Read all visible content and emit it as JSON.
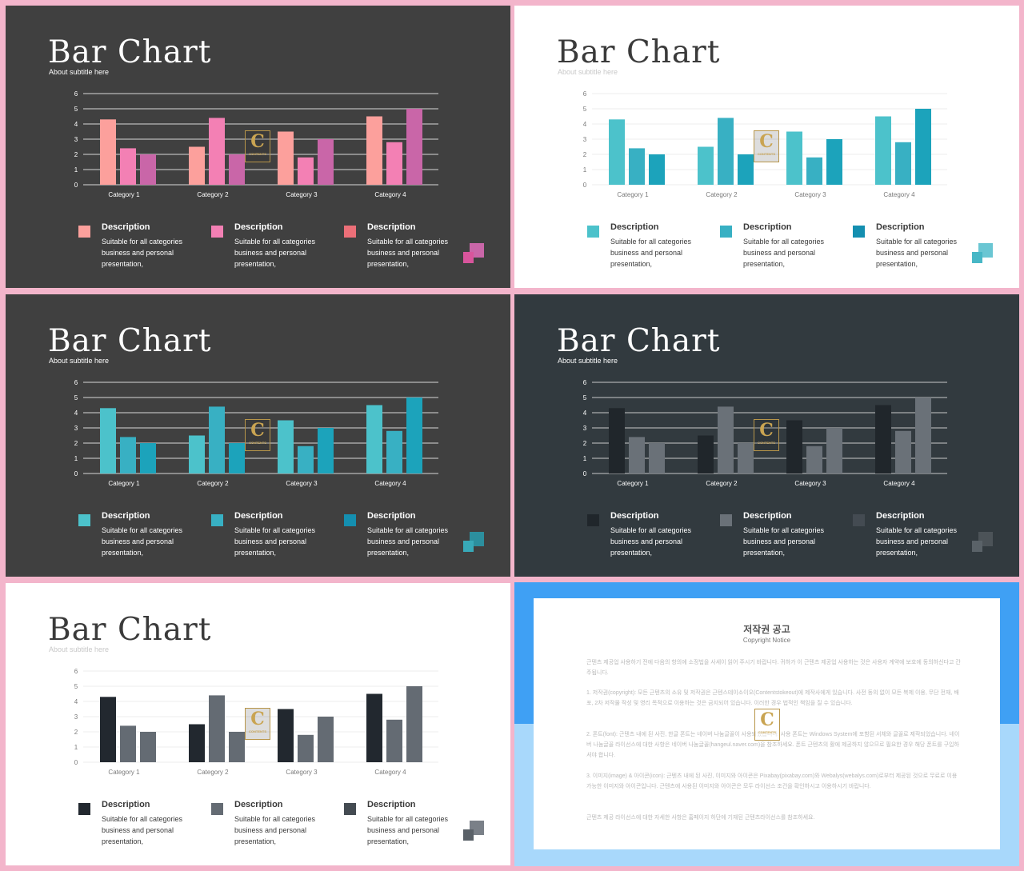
{
  "slides": [
    {
      "title": "Bar Chart",
      "subtitle": "About subtitle here",
      "bg": "#404040",
      "title_color": "#ffffff",
      "sub_color": "#ffffff",
      "axis_color": "#ffffff",
      "line_color": "#d8d8d8",
      "colors": [
        "#fca09c",
        "#f380b4",
        "#c966a8"
      ],
      "legend_colors": [
        "#fca09c",
        "#f380b4",
        "#ec6f78"
      ],
      "deco_colors": [
        "#c966a8",
        "#d8559c"
      ]
    },
    {
      "title": "Bar Chart",
      "subtitle": "About subtitle here",
      "bg": "#ffffff",
      "title_color": "#3a3a3a",
      "sub_color": "#c8c8c8",
      "axis_color": "#7a7a7a",
      "line_color": "#ececec",
      "colors": [
        "#4cc2cb",
        "#38b0c3",
        "#1ca3bb"
      ],
      "legend_colors": [
        "#4cc2cb",
        "#38b0c3",
        "#148fb0"
      ],
      "deco_colors": [
        "#6ac6d3",
        "#48b7c6"
      ]
    },
    {
      "title": "Bar Chart",
      "subtitle": "About subtitle here",
      "bg": "#404040",
      "title_color": "#ffffff",
      "sub_color": "#ffffff",
      "axis_color": "#ffffff",
      "line_color": "#d8d8d8",
      "colors": [
        "#4cc2cb",
        "#38b0c3",
        "#1ca3bb"
      ],
      "legend_colors": [
        "#4cc2cb",
        "#38b0c3",
        "#148fb0"
      ],
      "deco_colors": [
        "#2c8f9e",
        "#38a9b8"
      ]
    },
    {
      "title": "Bar Chart",
      "subtitle": "About subtitle here",
      "bg": "#323a3f",
      "title_color": "#ffffff",
      "sub_color": "#ffffff",
      "axis_color": "#ffffff",
      "line_color": "#c8c8c8",
      "colors": [
        "#20262b",
        "#6a7178",
        "#6a7178"
      ],
      "legend_colors": [
        "#20262b",
        "#6a7178",
        "#444b52"
      ],
      "deco_colors": [
        "#4c5358",
        "#5a6268"
      ]
    },
    {
      "title": "Bar Chart",
      "subtitle": "About subtitle here",
      "bg": "#ffffff",
      "title_color": "#3a3a3a",
      "sub_color": "#c8c8c8",
      "axis_color": "#7a7a7a",
      "line_color": "#ececec",
      "colors": [
        "#22282f",
        "#646b73",
        "#646b73"
      ],
      "legend_colors": [
        "#22282f",
        "#646b73",
        "#444b52"
      ],
      "deco_colors": [
        "#7a8088",
        "#5a6168"
      ]
    }
  ],
  "legend": [
    {
      "title": "Description",
      "text": "Suitable for all categories\nbusiness and personal\npresentation,"
    },
    {
      "title": "Description",
      "text": "Suitable for all categories\nbusiness and personal\npresentation,"
    },
    {
      "title": "Description",
      "text": "Suitable for all categories\nbusiness and personal\npresentation,"
    }
  ],
  "logo": {
    "letter": "C",
    "text": "CONTENTS"
  },
  "chart_data": {
    "type": "bar",
    "categories": [
      "Category 1",
      "Category 2",
      "Category 3",
      "Category 4"
    ],
    "series": [
      {
        "values": [
          4.3,
          2.5,
          3.5,
          4.5
        ]
      },
      {
        "values": [
          2.4,
          4.4,
          1.8,
          2.8
        ]
      },
      {
        "values": [
          2.0,
          2.0,
          3.0,
          5.0
        ]
      }
    ],
    "ylim": [
      0,
      6
    ],
    "yticks": [
      0,
      1,
      2,
      3,
      4,
      5,
      6
    ],
    "grid": true
  },
  "notice": {
    "title": "저작권 공고",
    "subtitle": "Copyright Notice",
    "p1": "근텐츠 제공업 사용하기 전에 다음의 항의에 소정법을 사세이 읽어 주시기 바랍니다. 귀하가 이 근텐츠 제공업 사용하는 것은 사용자 계약에 보호에 동의하신다고 간주됩니다.",
    "p2": "1. 저작권(copyright): 모든 근텐츠의 소유 및 저작권은 근텐스테이소이오(Contentstokeout)에 제작사에게 있습니다. 사전 동의 없이 모든 복제 이용, 무단 전재, 배포, 2차 저작물 작성 및 영리 목적으로 이용하는 것은 금지되어 있습니다. 이러한 경우 법적인 책임을 질 수 있습니다.",
    "p3": "2. 폰트(font): 근텐츠 내에 된 사진, 한글 폰트는 네이버 나눔글꼴이 사용되었습니다. 사용 폰트는 Windows System에 포함된 서체와 글꼴로 제작되었습니다. 네이버 나눔글꼴 라이선스에 대한 사항은 네이버 나눔글꼴(hangeul.naver.com)을 참조하세요. 폰트 근텐츠의 활에 제공하지 않으므로 필요한 경우 해당 폰트를 구입하셔야 합니다.",
    "p4": "3. 이미지(image) & 아이콘(icon): 근텐츠 내에 된 사진, 이미지와 아이콘은 Pixabay(pixabay.com)와 Webalys(webalys.com)로부터 제공된 것으로 무료로 이용 가능한 이미지와 아이콘입니다. 근텐츠에 사용된 이미지와 아이콘은 모두 라이선스 조건을 확인하시고 이용하시기 바랍니다.",
    "p5": "근텐츠 제공 라이선스에 대한 자세한 사항은 홈페이지 하단에 기재된 근텐츠라이선스를 참조하세요."
  }
}
